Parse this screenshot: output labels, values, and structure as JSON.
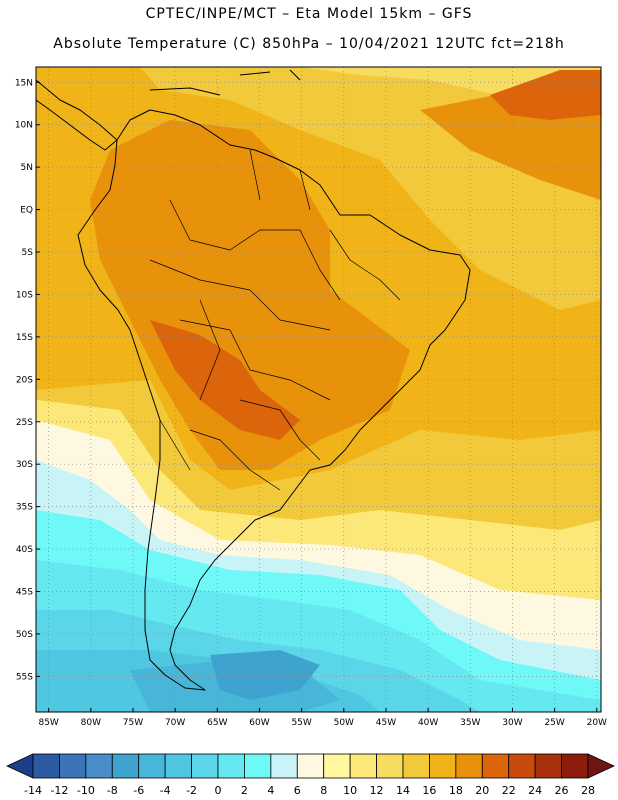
{
  "header": {
    "line1": "CPTEC/INPE/MCT –  Eta Model 15km – GFS",
    "line2": "Absolute Temperature (C) 850hPa – 10/04/2021 12UTC fct=218h"
  },
  "lat_labels": [
    "15N",
    "10N",
    "5N",
    "EQ",
    "5S",
    "10S",
    "15S",
    "20S",
    "25S",
    "30S",
    "35S",
    "40S",
    "45S",
    "50S",
    "55S"
  ],
  "lat_values": [
    15,
    10,
    5,
    0,
    -5,
    -10,
    -15,
    -20,
    -25,
    -30,
    -35,
    -40,
    -45,
    -50,
    -55
  ],
  "lon_labels": [
    "85W",
    "80W",
    "75W",
    "70W",
    "65W",
    "60W",
    "55W",
    "50W",
    "45W",
    "40W",
    "35W",
    "30W",
    "25W",
    "20W"
  ],
  "lon_values": [
    -85,
    -80,
    -75,
    -70,
    -65,
    -60,
    -55,
    -50,
    -45,
    -40,
    -35,
    -30,
    -25,
    -20
  ],
  "colorbar": {
    "ticks": [
      "-14",
      "-12",
      "-10",
      "-8",
      "-6",
      "-4",
      "-2",
      "0",
      "2",
      "4",
      "6",
      "8",
      "10",
      "12",
      "14",
      "16",
      "18",
      "20",
      "22",
      "24",
      "26",
      "28"
    ],
    "colors": [
      "#1c3f8c",
      "#2c5aa0",
      "#3b75b8",
      "#4a8ec9",
      "#3fa3cf",
      "#48b6d8",
      "#4fc7e0",
      "#5ad6e8",
      "#66e8f0",
      "#6ff8f8",
      "#c8f4f8",
      "#fff8e0",
      "#fff8a0",
      "#fbe878",
      "#f8dc60",
      "#f3c93c",
      "#f0b418",
      "#e8920c",
      "#dc640a",
      "#c84a0c",
      "#a8300c",
      "#8c1c0c",
      "#701414"
    ]
  },
  "field": {
    "colors": {
      "c18": "#f0b418",
      "c20": "#e8920c",
      "c22": "#dc640a",
      "c16": "#f3c93c",
      "c14": "#f8dc60",
      "c12": "#fbe878",
      "c10": "#fff8a0",
      "c8": "#fff8e0",
      "c6": "#c8f4f8",
      "c4": "#6ff8f8",
      "c2": "#66e8f0",
      "c0": "#5ad6e8",
      "cm2": "#4fc7e0",
      "cm4": "#48b6d8",
      "cm6": "#3fa3cf",
      "cm8": "#4a8ec9"
    }
  }
}
